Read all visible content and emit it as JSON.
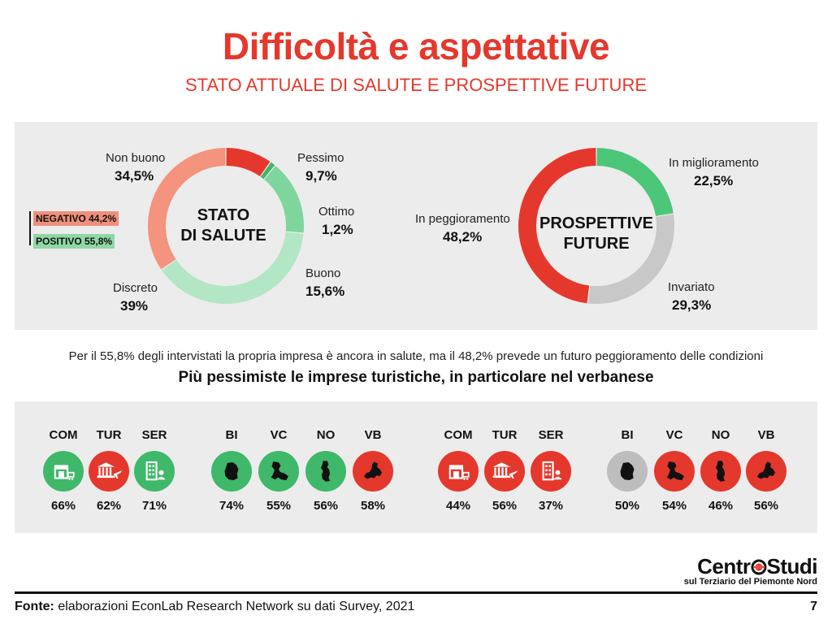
{
  "header": {
    "title": "Difficoltà e aspettative",
    "subtitle": "STATO ATTUALE DI SALUTE E PROSPETTIVE FUTURE"
  },
  "chart_data": [
    {
      "type": "pie",
      "title": "STATO DI SALUTE",
      "center_lines": [
        "STATO",
        "DI SALUTE"
      ],
      "slices": [
        {
          "label": "Pessimo",
          "value": 9.7,
          "display": "9,7%",
          "color": "#e5382c"
        },
        {
          "label": "Ottimo",
          "value": 1.2,
          "display": "1,2%",
          "color": "#3fb86a"
        },
        {
          "label": "Buono",
          "value": 15.6,
          "display": "15,6%",
          "color": "#7fd69c"
        },
        {
          "label": "Discreto",
          "value": 39,
          "display": "39%",
          "color": "#b3e6c4"
        },
        {
          "label": "Non buono",
          "value": 34.5,
          "display": "34,5%",
          "color": "#f4937e"
        }
      ],
      "groups": [
        {
          "label": "NEGATIVO 44,2%",
          "color": "#f0907c"
        },
        {
          "label": "POSITIVO 55,8%",
          "color": "#8fd8a6"
        }
      ]
    },
    {
      "type": "pie",
      "title": "PROSPETTIVE FUTURE",
      "center_lines": [
        "PROSPETTIVE",
        "FUTURE"
      ],
      "slices": [
        {
          "label": "In miglioramento",
          "value": 22.5,
          "display": "22,5%",
          "color": "#4cc77a"
        },
        {
          "label": "Invariato",
          "value": 29.3,
          "display": "29,3%",
          "color": "#c8c8c8"
        },
        {
          "label": "In peggioramento",
          "value": 48.2,
          "display": "48,2%",
          "color": "#e5382c"
        }
      ]
    }
  ],
  "notes": {
    "line1": "Per il 55,8% degli intervistati la propria impresa è ancora in salute, ma il 48,2% prevede un futuro peggioramento delle condizioni",
    "line2": "Più pessimiste le imprese turistiche, in particolare nel verbanese"
  },
  "indicators": {
    "left": [
      {
        "code": "COM",
        "pct": "66%",
        "icon": "shop-icon",
        "color": "#3fb86a"
      },
      {
        "code": "TUR",
        "pct": "62%",
        "icon": "tourism-icon",
        "color": "#e5382c"
      },
      {
        "code": "SER",
        "pct": "71%",
        "icon": "services-icon",
        "color": "#3fb86a"
      },
      {
        "code": "BI",
        "pct": "74%",
        "icon": "biella-map-icon",
        "color": "#3fb86a"
      },
      {
        "code": "VC",
        "pct": "55%",
        "icon": "vercelli-map-icon",
        "color": "#3fb86a"
      },
      {
        "code": "NO",
        "pct": "56%",
        "icon": "novara-map-icon",
        "color": "#3fb86a"
      },
      {
        "code": "VB",
        "pct": "58%",
        "icon": "verbania-map-icon",
        "color": "#e5382c"
      }
    ],
    "right": [
      {
        "code": "COM",
        "pct": "44%",
        "icon": "shop-icon",
        "color": "#e5382c"
      },
      {
        "code": "TUR",
        "pct": "56%",
        "icon": "tourism-icon",
        "color": "#e5382c"
      },
      {
        "code": "SER",
        "pct": "37%",
        "icon": "services-icon",
        "color": "#e5382c"
      },
      {
        "code": "BI",
        "pct": "50%",
        "icon": "biella-map-icon",
        "color": "#bdbdbd"
      },
      {
        "code": "VC",
        "pct": "54%",
        "icon": "vercelli-map-icon",
        "color": "#e5382c"
      },
      {
        "code": "NO",
        "pct": "46%",
        "icon": "novara-map-icon",
        "color": "#e5382c"
      },
      {
        "code": "VB",
        "pct": "56%",
        "icon": "verbania-map-icon",
        "color": "#e5382c"
      }
    ]
  },
  "logo": {
    "name_a": "Centr",
    "name_b": "Studi",
    "tagline": "sul Terziario del Piemonte Nord"
  },
  "footer": {
    "source_label": "Fonte:",
    "source_text": "elaborazioni EconLab Research Network su dati Survey, 2021",
    "page": "7"
  }
}
